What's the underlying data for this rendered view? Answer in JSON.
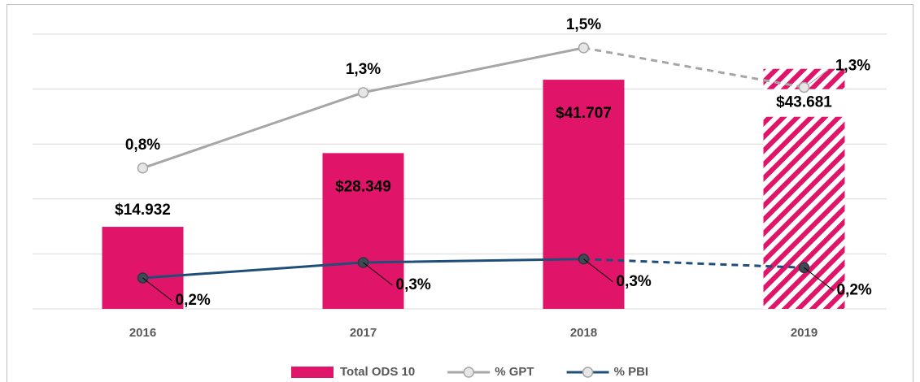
{
  "chart_data": {
    "type": "bar_line",
    "categories": [
      "2016",
      "2017",
      "2018",
      "2019"
    ],
    "series": [
      {
        "name": "Total ODS 10",
        "type": "bar",
        "color": "#e0156a",
        "values": [
          14932,
          28349,
          41707,
          43681
        ],
        "value_labels": [
          "$14.932",
          "$28.349",
          "$41.707",
          "$43.681"
        ]
      },
      {
        "name": "% GPT",
        "type": "line",
        "axis": "y2",
        "color": "#a6a6a6",
        "values": [
          0.82,
          1.26,
          1.52,
          1.29
        ],
        "value_labels": [
          "0,8%",
          "1,3%",
          "1,5%",
          "1,3%"
        ]
      },
      {
        "name": "% PBI",
        "type": "line",
        "axis": "y2",
        "color": "#1f4e79",
        "values": [
          0.18,
          0.27,
          0.29,
          0.24
        ],
        "value_labels": [
          "0,2%",
          "0,3%",
          "0,3%",
          "0,2%"
        ]
      }
    ],
    "ylim": [
      0,
      50000
    ],
    "yticks": [
      0,
      10000,
      20000,
      30000,
      40000,
      50000
    ],
    "y2lim": [
      0,
      1.6
    ],
    "grid": true,
    "projected_category_index": 3,
    "legend": "bottom"
  }
}
